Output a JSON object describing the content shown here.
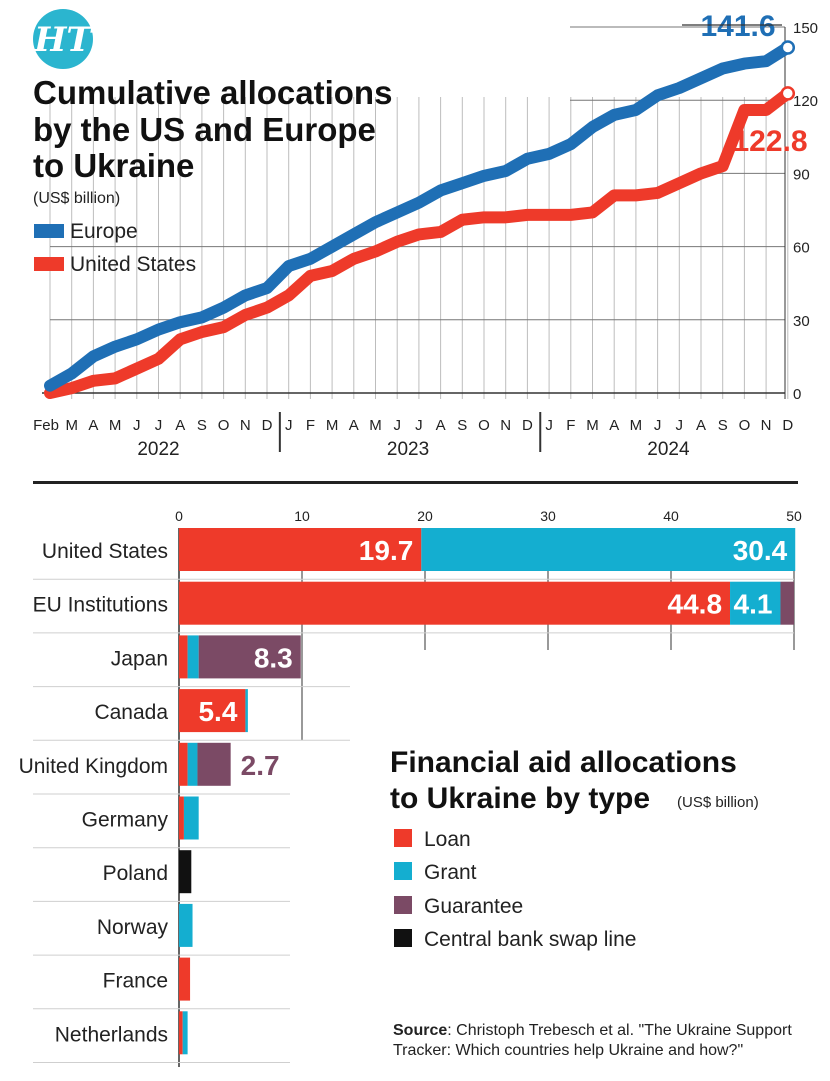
{
  "brand": {
    "logo_text": "HT",
    "logo_color": "#2bb5cf"
  },
  "colors": {
    "europe": "#1f6fb5",
    "us": "#ee3a2a",
    "loan": "#ee3a2a",
    "grant": "#14aed0",
    "guarantee": "#7b4a65",
    "swap": "#111111",
    "grid": "#bdbdbd",
    "axis": "#333333"
  },
  "chart_data": [
    {
      "type": "line",
      "title": "Cumulative allocations by the US and Europe to Ukraine",
      "title_lines": [
        "Cumulative allocations",
        "by the US and Europe",
        "to Ukraine"
      ],
      "subtitle": "(US$ billion)",
      "x_ticks": [
        "Feb",
        "M",
        "A",
        "M",
        "J",
        "J",
        "A",
        "S",
        "O",
        "N",
        "D",
        "J",
        "F",
        "M",
        "A",
        "M",
        "J",
        "J",
        "A",
        "S",
        "O",
        "N",
        "D",
        "J",
        "F",
        "M",
        "A",
        "M",
        "J",
        "J",
        "A",
        "S",
        "O",
        "N",
        "D"
      ],
      "year_labels": [
        "2022",
        "2023",
        "2024"
      ],
      "y_ticks": [
        0,
        30,
        60,
        90,
        120,
        150
      ],
      "ylim": [
        0,
        150
      ],
      "grid": "vertical and horizontal",
      "legend_position": "top-left",
      "series": [
        {
          "name": "Europe",
          "end_label": "141.6",
          "values": [
            3,
            8,
            15,
            19,
            22,
            26,
            29,
            31,
            35,
            40,
            43,
            52,
            55,
            60,
            65,
            70,
            74,
            78,
            83,
            86,
            89,
            91,
            96,
            98,
            102,
            109,
            114,
            116,
            122,
            125,
            129,
            133,
            135,
            136,
            141.6
          ]
        },
        {
          "name": "United States",
          "end_label": "122.8",
          "values": [
            0,
            2,
            5,
            6,
            10,
            14,
            22,
            25,
            27,
            32,
            35,
            40,
            48,
            50,
            55,
            58,
            62,
            65,
            66,
            71,
            72,
            72,
            73,
            73,
            73,
            74,
            81,
            81,
            82,
            86,
            90,
            93,
            116,
            116,
            122.8
          ]
        }
      ]
    },
    {
      "type": "bar",
      "orientation": "horizontal",
      "stacked": true,
      "title": "Financial aid allocations to Ukraine by type",
      "title_lines": [
        "Financial aid allocations",
        "to Ukraine by type"
      ],
      "subtitle": "(US$ billion)",
      "x_ticks": [
        0,
        10,
        20,
        30,
        40,
        50
      ],
      "xlim": [
        0,
        50
      ],
      "legend": [
        "Loan",
        "Grant",
        "Guarantee",
        "Central bank swap line"
      ],
      "legend_position": "bottom-right",
      "categories": [
        "United States",
        "EU Institutions",
        "Japan",
        "Canada",
        "United Kingdom",
        "Germany",
        "Poland",
        "Norway",
        "France",
        "Netherlands"
      ],
      "series": [
        {
          "name": "Loan",
          "values": [
            19.7,
            44.8,
            0.7,
            5.4,
            0.7,
            0.4,
            0,
            0,
            0.9,
            0.3
          ]
        },
        {
          "name": "Grant",
          "values": [
            30.4,
            4.1,
            0.9,
            0.2,
            0.8,
            1.2,
            0,
            1.1,
            0,
            0.4
          ]
        },
        {
          "name": "Guarantee",
          "values": [
            0,
            1.1,
            8.3,
            0,
            2.7,
            0,
            0,
            0,
            0,
            0
          ]
        },
        {
          "name": "Central bank swap line",
          "values": [
            0,
            0,
            0,
            0,
            0,
            0,
            1.0,
            0,
            0,
            0
          ]
        }
      ],
      "data_labels": [
        {
          "category": "United States",
          "series": "Loan",
          "text": "19.7",
          "placement": "inside"
        },
        {
          "category": "United States",
          "series": "Grant",
          "text": "30.4",
          "placement": "inside"
        },
        {
          "category": "EU Institutions",
          "series": "Loan",
          "text": "44.8",
          "placement": "inside"
        },
        {
          "category": "EU Institutions",
          "series": "Grant",
          "text": "4.1",
          "placement": "inside"
        },
        {
          "category": "Japan",
          "series": "Guarantee",
          "text": "8.3",
          "placement": "inside"
        },
        {
          "category": "Canada",
          "series": "Loan",
          "text": "5.4",
          "placement": "inside"
        },
        {
          "category": "United Kingdom",
          "series": "Guarantee",
          "text": "2.7",
          "placement": "outside"
        }
      ],
      "source_label": "Source",
      "source_text": ": Christoph Trebesch et al. \"The Ukraine Support Tracker: Which countries help Ukraine and how?\"",
      "source_lines": [
        ": Christoph Trebesch et al. \"The Ukraine Support",
        "Tracker: Which countries help Ukraine and how?\""
      ]
    }
  ]
}
